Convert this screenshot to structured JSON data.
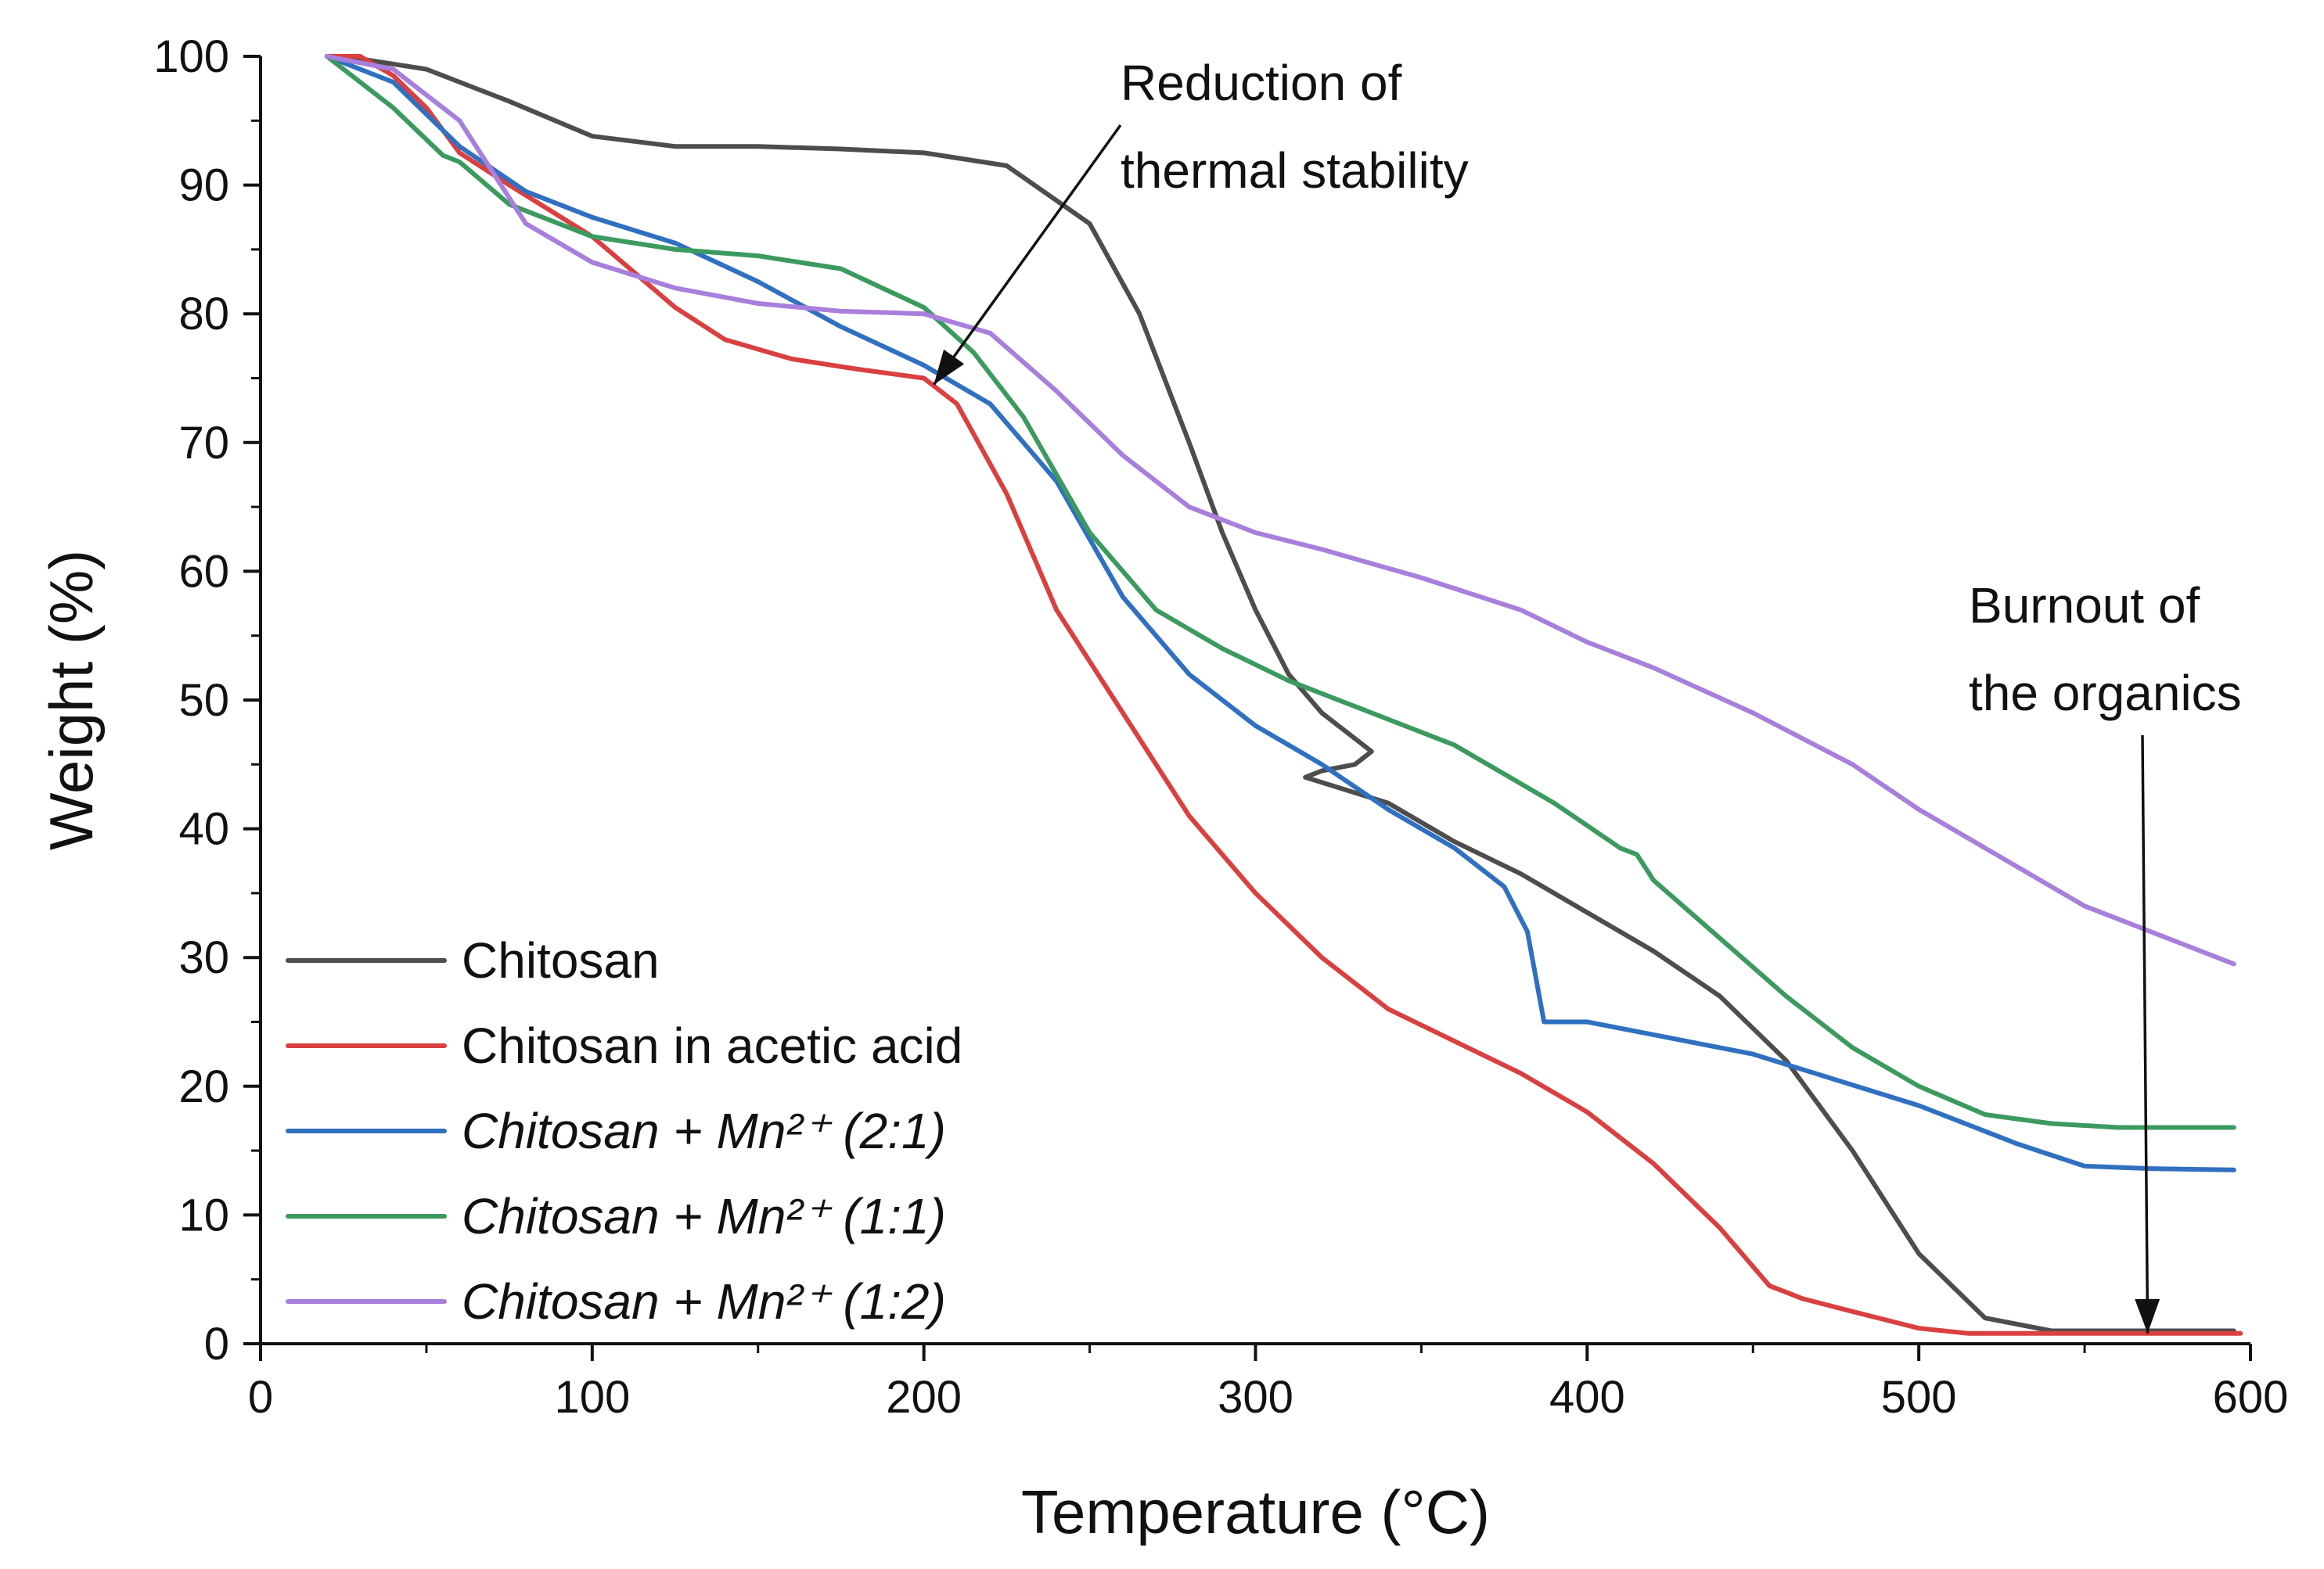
{
  "chart_data": {
    "type": "line",
    "title": "",
    "xlabel": "Temperature (°C)",
    "ylabel": "Weight (%)",
    "xlim": [
      0,
      600
    ],
    "ylim": [
      0,
      100
    ],
    "xticks": [
      "0",
      "100",
      "200",
      "300",
      "400",
      "500",
      "600"
    ],
    "yticks": [
      "0",
      "10",
      "20",
      "30",
      "40",
      "50",
      "60",
      "70",
      "80",
      "90",
      "100"
    ],
    "grid": false,
    "legend_position": "bottom-left",
    "series": [
      {
        "name": "Chitosan",
        "color": "#4d4d4d",
        "italic": false,
        "x": [
          25,
          50,
          75,
          100,
          125,
          150,
          175,
          200,
          225,
          250,
          265,
          280,
          290,
          300,
          310,
          320,
          330,
          335,
          330,
          320,
          315,
          340,
          360,
          380,
          400,
          420,
          440,
          460,
          480,
          500,
          520,
          540,
          560,
          580,
          595
        ],
        "y": [
          100,
          99,
          96.5,
          93.8,
          93,
          93,
          92.8,
          92.5,
          91.5,
          87,
          80,
          70,
          63,
          57,
          52,
          49,
          47,
          46,
          45,
          44.5,
          44,
          42,
          39,
          36.5,
          33.5,
          30.5,
          27,
          22,
          15,
          7,
          2,
          1,
          1,
          1,
          1
        ]
      },
      {
        "name": "Chitosan in acetic acid",
        "color": "#d9403f",
        "italic": false,
        "x": [
          20,
          30,
          40,
          50,
          60,
          75,
          100,
          125,
          140,
          160,
          180,
          200,
          210,
          225,
          240,
          260,
          280,
          300,
          320,
          340,
          360,
          380,
          400,
          420,
          440,
          455,
          465,
          480,
          500,
          515,
          550,
          597
        ],
        "y": [
          100,
          100,
          98.5,
          96,
          92.5,
          90,
          86,
          80.5,
          78,
          76.5,
          75.7,
          75,
          73,
          66,
          57,
          49,
          41,
          35,
          30,
          26,
          23.5,
          21,
          18,
          14,
          9,
          4.5,
          3.5,
          2.5,
          1.2,
          0.8,
          0.8,
          0.8
        ]
      },
      {
        "name": "Chitosan + Mn²⁺ (2:1)",
        "color": "#3070c0",
        "italic": true,
        "x": [
          20,
          40,
          60,
          80,
          100,
          125,
          150,
          175,
          200,
          220,
          240,
          260,
          280,
          300,
          320,
          340,
          360,
          375,
          382,
          387,
          400,
          450,
          500,
          530,
          550,
          570,
          595
        ],
        "y": [
          100,
          98,
          93,
          89.5,
          87.5,
          85.5,
          82.5,
          79,
          76,
          73,
          67,
          58,
          52,
          48,
          45,
          41.5,
          38.5,
          35.5,
          32,
          25,
          25,
          22.5,
          18.5,
          15.5,
          13.8,
          13.6,
          13.5
        ]
      },
      {
        "name": "Chitosan + Mn²⁺ (1:1)",
        "color": "#3c9a5f",
        "italic": true,
        "x": [
          20,
          40,
          55,
          60,
          75,
          100,
          125,
          150,
          175,
          200,
          215,
          230,
          250,
          270,
          290,
          310,
          330,
          360,
          390,
          410,
          415,
          420,
          440,
          460,
          480,
          500,
          520,
          540,
          560,
          580,
          595
        ],
        "y": [
          100,
          96,
          92.3,
          91.8,
          88.5,
          86,
          85,
          84.5,
          83.5,
          80.5,
          77,
          72,
          63,
          57,
          54,
          51.5,
          49.5,
          46.5,
          42,
          38.5,
          38,
          36,
          31.5,
          27,
          23,
          20,
          17.8,
          17.1,
          16.8,
          16.8,
          16.8
        ]
      },
      {
        "name": "Chitosan + Mn²⁺ (1:2)",
        "color": "#a87fdc",
        "italic": true,
        "x": [
          20,
          40,
          60,
          80,
          100,
          125,
          150,
          175,
          200,
          220,
          240,
          260,
          280,
          300,
          320,
          350,
          380,
          400,
          420,
          450,
          480,
          500,
          550,
          595
        ],
        "y": [
          100,
          99,
          95,
          87,
          84,
          82,
          80.8,
          80.2,
          80,
          78.5,
          74,
          69,
          65,
          63,
          61.7,
          59.5,
          57,
          54.5,
          52.5,
          49,
          45,
          41.5,
          34,
          29.5
        ]
      }
    ],
    "annotations": [
      {
        "lines": [
          "Reduction of",
          "thermal stability"
        ],
        "arrow_to": [
          203,
          74.5
        ]
      },
      {
        "lines": [
          "Burnout of",
          "the organics"
        ],
        "arrow_to": [
          569,
          0.8
        ]
      }
    ]
  }
}
